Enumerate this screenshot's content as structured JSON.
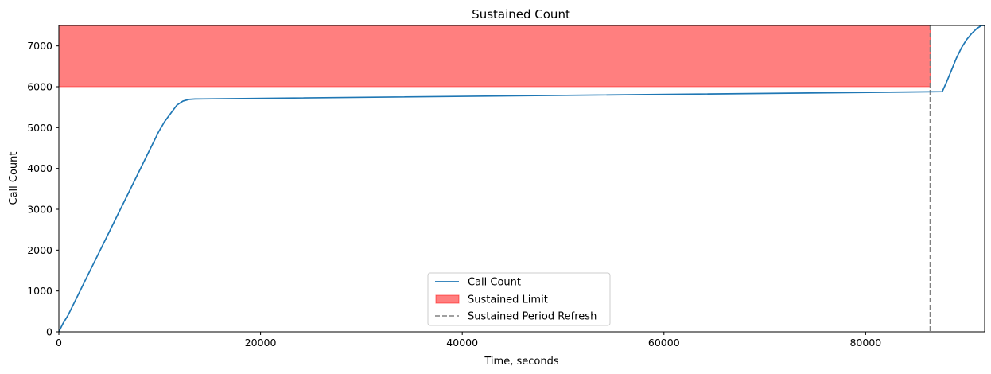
{
  "chart_data": {
    "type": "line",
    "title": "Sustained Count",
    "xlabel": "Time, seconds",
    "ylabel": "Call Count",
    "xlim": [
      0,
      91800
    ],
    "ylim": [
      0,
      7500
    ],
    "xticks": [
      0,
      20000,
      40000,
      60000,
      80000
    ],
    "yticks": [
      0,
      1000,
      2000,
      3000,
      4000,
      5000,
      6000,
      7000
    ],
    "grid": false,
    "legend_position": "bottom-center",
    "series": [
      {
        "name": "Call Count",
        "color": "#1f77b4",
        "x": [
          0,
          400,
          900,
          1500,
          2100,
          2700,
          3300,
          3900,
          4500,
          5100,
          5700,
          6300,
          6900,
          7500,
          8100,
          8700,
          9300,
          9900,
          10500,
          11100,
          11700,
          12300,
          12900,
          13500,
          87600,
          88000,
          88500,
          89000,
          89500,
          90000,
          90500,
          91000,
          91500,
          91800
        ],
        "y": [
          0,
          200,
          400,
          700,
          1000,
          1300,
          1600,
          1900,
          2200,
          2500,
          2800,
          3100,
          3400,
          3700,
          4000,
          4300,
          4600,
          4900,
          5150,
          5350,
          5550,
          5650,
          5690,
          5700,
          5880,
          6100,
          6400,
          6700,
          6950,
          7150,
          7300,
          7420,
          7500,
          7500
        ]
      }
    ],
    "regions": [
      {
        "name": "Sustained Limit",
        "x_from": 0,
        "x_to": 86400,
        "y_from": 6000,
        "y_to": 7500,
        "color": "#ff0000",
        "alpha": 0.5
      }
    ],
    "vlines": [
      {
        "name": "Sustained Period Refresh",
        "x": 86400,
        "color": "#808080",
        "style": "dashed"
      }
    ],
    "legend": [
      "Call Count",
      "Sustained Limit",
      "Sustained Period Refresh"
    ]
  }
}
